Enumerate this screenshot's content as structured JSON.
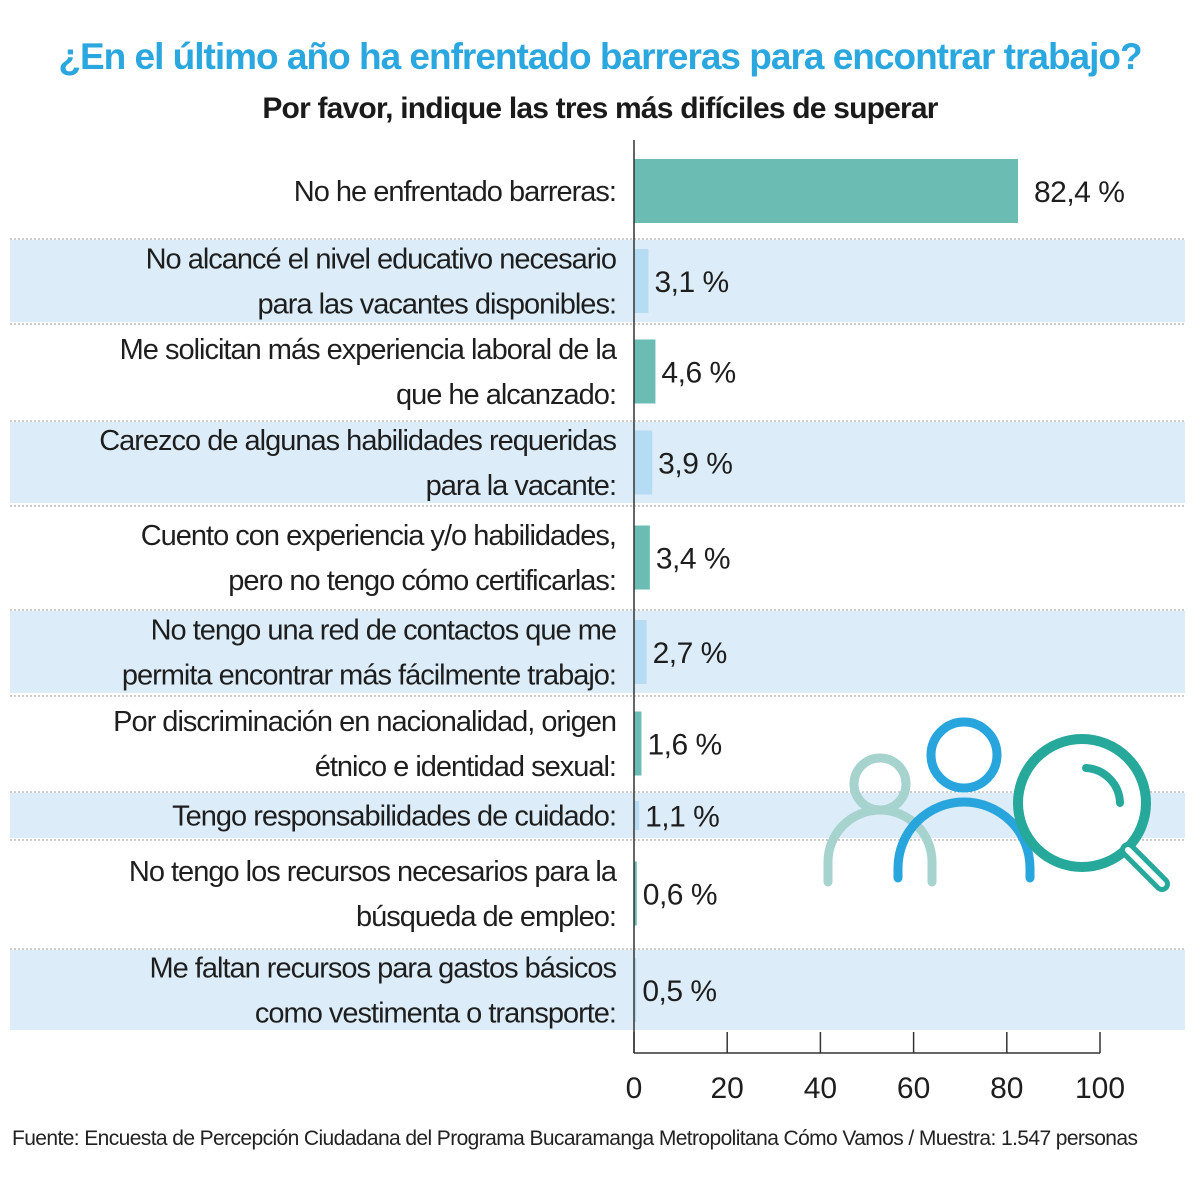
{
  "chart_data": {
    "type": "bar",
    "orientation": "horizontal",
    "title": "¿En el último año ha enfrentado barreras para encontrar trabajo?",
    "subtitle": "Por favor, indique las tres más difíciles de superar",
    "categories": [
      [
        "No he enfrentado barreras:"
      ],
      [
        "No alcancé el nivel educativo necesario",
        "para las vacantes disponibles:"
      ],
      [
        "Me solicitan más experiencia laboral de la",
        "que he alcanzado:"
      ],
      [
        "Carezco de algunas habilidades requeridas",
        "para la vacante:"
      ],
      [
        "Cuento con experiencia y/o habilidades,",
        "pero no tengo cómo certificarlas:"
      ],
      [
        "No tengo una red de contactos que me",
        "permita encontrar más fácilmente trabajo:"
      ],
      [
        "Por discriminación en nacionalidad, origen",
        "étnico e identidad sexual:"
      ],
      [
        "Tengo responsabilidades de cuidado:"
      ],
      [
        "No tengo los recursos necesarios para la",
        "búsqueda de empleo:"
      ],
      [
        "Me faltan recursos para gastos básicos",
        "como vestimenta o transporte:"
      ]
    ],
    "values": [
      82.4,
      3.1,
      4.6,
      3.9,
      3.4,
      2.7,
      1.6,
      1.1,
      0.6,
      0.5
    ],
    "value_labels": [
      "82,4 %",
      "3,1 %",
      "4,6 %",
      "3,9 %",
      "3,4 %",
      "2,7 %",
      "1,6 %",
      "1,1 %",
      "0,6 %",
      "0,5 %"
    ],
    "xlim": [
      0,
      100
    ],
    "xticks": [
      0,
      20,
      40,
      60,
      80,
      100
    ],
    "grid": false,
    "colors": {
      "teal_bar": "#6bbdb4",
      "blue_bar": "#b6dcf3",
      "row_band": "#dcedf9",
      "icon_light": "#a6d3ce",
      "icon_blue": "#27a5dc",
      "icon_teal": "#26a89b"
    },
    "icon": "people-search-icon"
  },
  "footer": "Fuente: Encuesta de Percepción Ciudadana del Programa Bucaramanga Metropolitana Cómo Vamos / Muestra: 1.547 personas"
}
